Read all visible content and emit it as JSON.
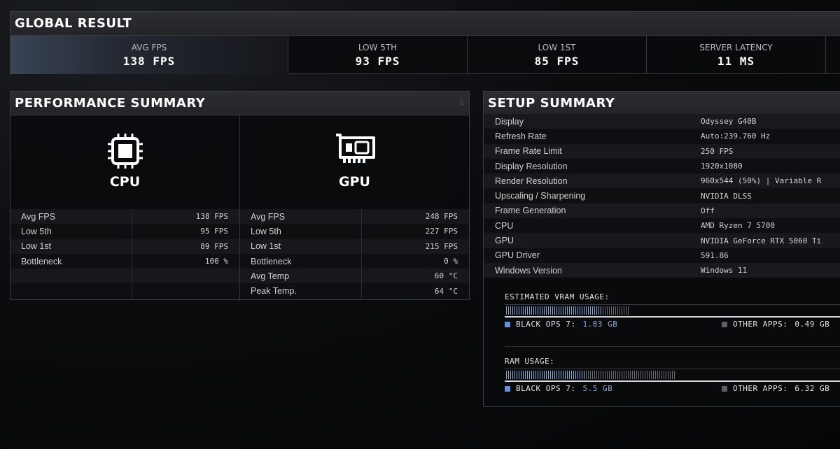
{
  "global": {
    "title": "GLOBAL RESULT",
    "stats": [
      {
        "label": "AVG FPS",
        "value": "138 FPS"
      },
      {
        "label": "LOW 5TH",
        "value": "93 FPS"
      },
      {
        "label": "LOW 1ST",
        "value": "85 FPS"
      },
      {
        "label": "SERVER LATENCY",
        "value": "11 MS"
      }
    ]
  },
  "performance": {
    "title": "PERFORMANCE SUMMARY",
    "cpu": {
      "label": "CPU",
      "icon": "cpu-chip-icon",
      "rows": [
        {
          "name": "Avg FPS",
          "value": "138 FPS"
        },
        {
          "name": "Low 5th",
          "value": "95 FPS"
        },
        {
          "name": "Low 1st",
          "value": "89 FPS"
        },
        {
          "name": "Bottleneck",
          "value": "100 %"
        },
        {
          "name": "",
          "value": ""
        },
        {
          "name": "",
          "value": ""
        }
      ]
    },
    "gpu": {
      "label": "GPU",
      "icon": "graphics-card-icon",
      "rows": [
        {
          "name": "Avg FPS",
          "value": "248 FPS"
        },
        {
          "name": "Low 5th",
          "value": "227 FPS"
        },
        {
          "name": "Low 1st",
          "value": "215 FPS"
        },
        {
          "name": "Bottleneck",
          "value": "0 %"
        },
        {
          "name": "Avg Temp",
          "value": "60 °C"
        },
        {
          "name": "Peak Temp.",
          "value": "64 °C"
        }
      ]
    }
  },
  "setup": {
    "title": "SETUP SUMMARY",
    "rows": [
      {
        "name": "Display",
        "value": "Odyssey G40B"
      },
      {
        "name": "Refresh Rate",
        "value": "Auto:239.760 Hz"
      },
      {
        "name": "Frame Rate Limit",
        "value": "250 FPS"
      },
      {
        "name": "Display Resolution",
        "value": "1920x1080"
      },
      {
        "name": "Render Resolution",
        "value": "960x544 (50%) | Variable R"
      },
      {
        "name": "Upscaling / Sharpening",
        "value": "NVIDIA DLSS"
      },
      {
        "name": "Frame Generation",
        "value": "Off"
      },
      {
        "name": "CPU",
        "value": "AMD Ryzen 7 5700"
      },
      {
        "name": "GPU",
        "value": "NVIDIA GeForce RTX 5060 Ti"
      },
      {
        "name": "GPU Driver",
        "value": "591.86"
      },
      {
        "name": "Windows Version",
        "value": "Windows 11"
      }
    ],
    "vram": {
      "title": "ESTIMATED VRAM USAGE:",
      "game_label": "BLACK OPS 7:",
      "game_value": "1.83 GB",
      "other_label": "OTHER APPS:",
      "other_value": "0.49 GB",
      "game_fraction": 0.29,
      "other_fraction": 0.08
    },
    "ram": {
      "title": "RAM USAGE:",
      "game_label": "BLACK OPS 7:",
      "game_value": "5.5 GB",
      "other_label": "OTHER APPS:",
      "other_value": "6.32 GB",
      "game_fraction": 0.24,
      "other_fraction": 0.27
    }
  },
  "colors": {
    "accent_blue": "#8fa6d6",
    "panel_bg": "#0a0b0d",
    "header_bg": "#26282c"
  }
}
